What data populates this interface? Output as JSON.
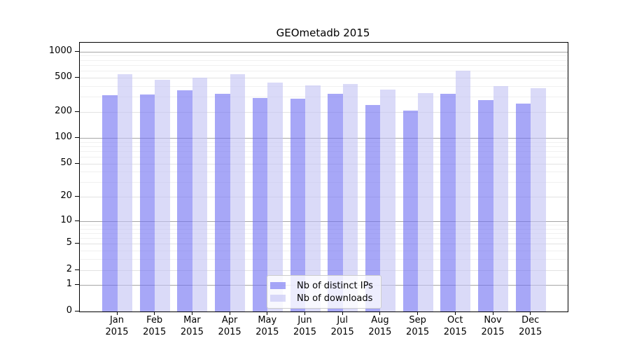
{
  "title": "GEOmetadb 2015",
  "chart_data": {
    "type": "bar",
    "title": "GEOmetadb 2015",
    "categories": [
      "Jan 2015",
      "Feb 2015",
      "Mar 2015",
      "Apr 2015",
      "May 2015",
      "Jun 2015",
      "Jul 2015",
      "Aug 2015",
      "Sep 2015",
      "Oct 2015",
      "Nov 2015",
      "Dec 2015"
    ],
    "series": [
      {
        "name": "Nb of distinct IPs",
        "values": [
          317,
          322,
          360,
          331,
          293,
          288,
          328,
          243,
          211,
          328,
          276,
          252
        ]
      },
      {
        "name": "Nb of downloads",
        "values": [
          552,
          476,
          505,
          552,
          444,
          412,
          428,
          367,
          334,
          605,
          405,
          383
        ]
      }
    ],
    "y_ticks": [
      0,
      1,
      2,
      5,
      10,
      20,
      50,
      100,
      200,
      500,
      1000
    ],
    "y_decade_ticks": [
      1,
      10,
      100,
      1000
    ],
    "y_minor_gridlines": [
      3,
      4,
      6,
      7,
      8,
      9,
      30,
      40,
      60,
      70,
      80,
      90,
      300,
      400,
      600,
      700,
      800,
      900
    ],
    "y_scale": "log10(value+1)",
    "ylim": [
      0,
      1280
    ],
    "grid": true,
    "legend_position": "lower center"
  },
  "colors": {
    "bar_ips": "rgba(113,113,242,0.62)",
    "bar_downloads": "rgba(196,196,244,0.62)",
    "bar_ips_flat": "#a8a8f8",
    "bar_downloads_flat": "#dcdcfa",
    "grid_decade": "#a6a6a6",
    "grid_major": "#e2e2e2",
    "grid_minor": "#f0f0f0",
    "axis": "#000000",
    "legend_border": "#cccccc"
  }
}
